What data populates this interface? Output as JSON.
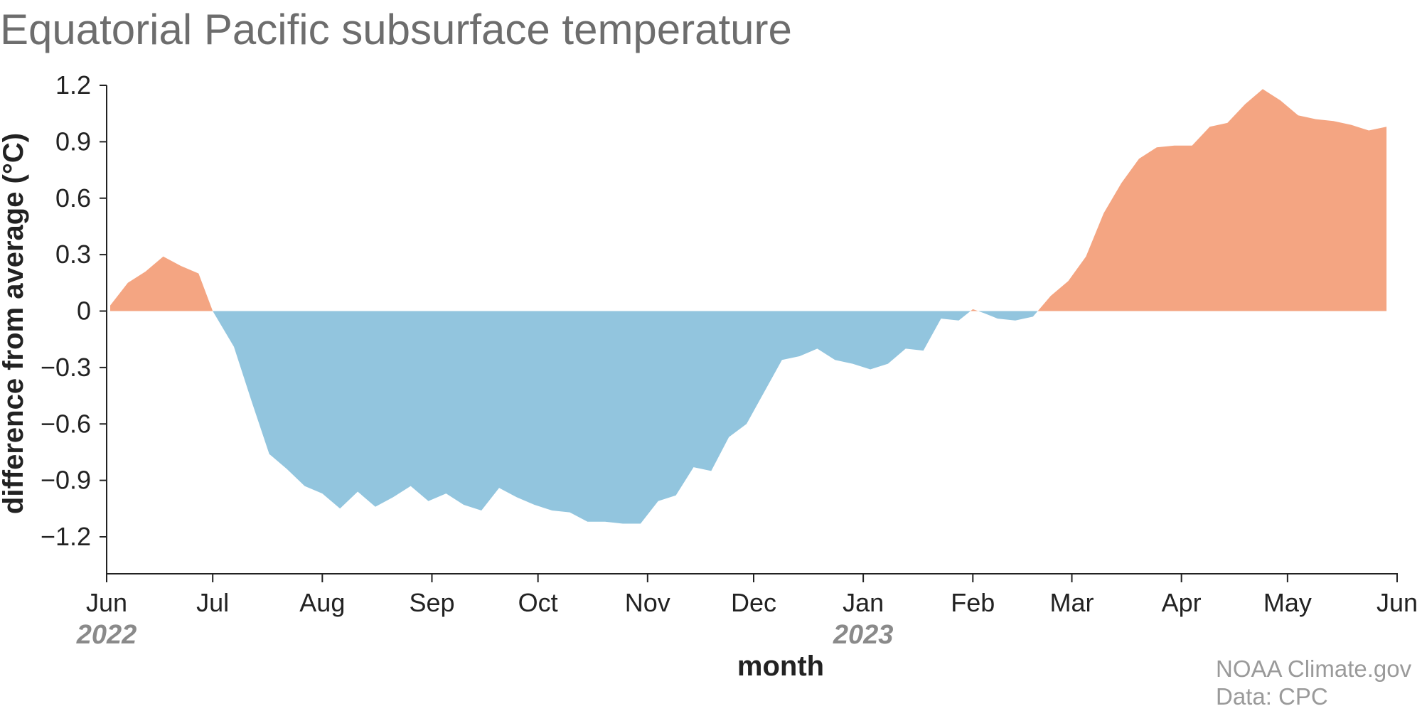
{
  "header": {
    "title": "Equatorial Pacific subsurface temperature"
  },
  "credits": {
    "source": "NOAA Climate.gov",
    "data": "Data: CPC"
  },
  "colors": {
    "positive": "#f4a582",
    "negative": "#92c5de",
    "axis": "#222222",
    "title": "#6d6d6d",
    "year": "#8a8a8a",
    "credit": "#9a9a9a"
  },
  "chart_data": {
    "type": "area",
    "title": "Equatorial Pacific subsurface temperature",
    "xlabel": "month",
    "ylabel": "difference from average (°C)",
    "ylim": [
      -1.4,
      1.2
    ],
    "xlim": [
      "2022-06-01",
      "2023-06-01"
    ],
    "yticks": [
      1.2,
      0.9,
      0.6,
      0.3,
      0,
      -0.3,
      -0.6,
      -0.9,
      -1.2
    ],
    "ytick_labels": [
      "1.2",
      "0.9",
      "0.6",
      "0.3",
      "0",
      "−0.3",
      "−0.6",
      "−0.9",
      "−1.2"
    ],
    "xticks": [
      {
        "date": "2022-06-01",
        "label": "Jun"
      },
      {
        "date": "2022-07-01",
        "label": "Jul"
      },
      {
        "date": "2022-08-01",
        "label": "Aug"
      },
      {
        "date": "2022-09-01",
        "label": "Sep"
      },
      {
        "date": "2022-10-01",
        "label": "Oct"
      },
      {
        "date": "2022-11-01",
        "label": "Nov"
      },
      {
        "date": "2022-12-01",
        "label": "Dec"
      },
      {
        "date": "2023-01-01",
        "label": "Jan"
      },
      {
        "date": "2023-02-01",
        "label": "Feb"
      },
      {
        "date": "2023-03-01",
        "label": "Mar"
      },
      {
        "date": "2023-04-01",
        "label": "Apr"
      },
      {
        "date": "2023-05-01",
        "label": "May"
      },
      {
        "date": "2023-06-01",
        "label": "Jun"
      }
    ],
    "year_labels": [
      {
        "date": "2022-06-01",
        "label": "2022"
      },
      {
        "date": "2023-01-01",
        "label": "2023"
      }
    ],
    "grid": false,
    "legend": "none",
    "series": {
      "x": [
        "2022-06-02",
        "2022-06-07",
        "2022-06-12",
        "2022-06-17",
        "2022-06-22",
        "2022-06-27",
        "2022-07-01",
        "2022-07-07",
        "2022-07-12",
        "2022-07-17",
        "2022-07-22",
        "2022-07-27",
        "2022-08-01",
        "2022-08-06",
        "2022-08-11",
        "2022-08-16",
        "2022-08-21",
        "2022-08-26",
        "2022-08-31",
        "2022-09-05",
        "2022-09-10",
        "2022-09-15",
        "2022-09-20",
        "2022-09-25",
        "2022-09-30",
        "2022-10-05",
        "2022-10-10",
        "2022-10-15",
        "2022-10-20",
        "2022-10-25",
        "2022-10-30",
        "2022-11-04",
        "2022-11-09",
        "2022-11-14",
        "2022-11-19",
        "2022-11-24",
        "2022-11-29",
        "2022-12-04",
        "2022-12-09",
        "2022-12-14",
        "2022-12-19",
        "2022-12-24",
        "2022-12-29",
        "2023-01-03",
        "2023-01-08",
        "2023-01-13",
        "2023-01-18",
        "2023-01-23",
        "2023-01-28",
        "2023-02-01",
        "2023-02-04",
        "2023-02-08",
        "2023-02-13",
        "2023-02-18",
        "2023-02-23",
        "2023-02-28",
        "2023-03-05",
        "2023-03-10",
        "2023-03-15",
        "2023-03-20",
        "2023-03-25",
        "2023-03-30",
        "2023-04-04",
        "2023-04-09",
        "2023-04-14",
        "2023-04-19",
        "2023-04-24",
        "2023-04-29",
        "2023-05-04",
        "2023-05-09",
        "2023-05-14",
        "2023-05-19",
        "2023-05-24",
        "2023-05-29"
      ],
      "y": [
        0.03,
        0.15,
        0.21,
        0.29,
        0.24,
        0.2,
        0.0,
        -0.19,
        -0.48,
        -0.76,
        -0.84,
        -0.93,
        -0.97,
        -1.05,
        -0.96,
        -1.04,
        -0.99,
        -0.93,
        -1.01,
        -0.97,
        -1.03,
        -1.06,
        -0.94,
        -0.99,
        -1.03,
        -1.06,
        -1.07,
        -1.12,
        -1.12,
        -1.13,
        -1.13,
        -1.01,
        -0.98,
        -0.83,
        -0.85,
        -0.67,
        -0.6,
        -0.43,
        -0.26,
        -0.24,
        -0.2,
        -0.26,
        -0.28,
        -0.31,
        -0.28,
        -0.2,
        -0.21,
        -0.04,
        -0.05,
        0.01,
        -0.01,
        -0.04,
        -0.05,
        -0.03,
        0.08,
        0.16,
        0.29,
        0.52,
        0.68,
        0.81,
        0.87,
        0.88,
        0.88,
        0.98,
        1.0,
        1.1,
        1.18,
        1.12,
        1.04,
        1.02,
        1.01,
        0.99,
        0.96,
        0.98
      ]
    }
  }
}
